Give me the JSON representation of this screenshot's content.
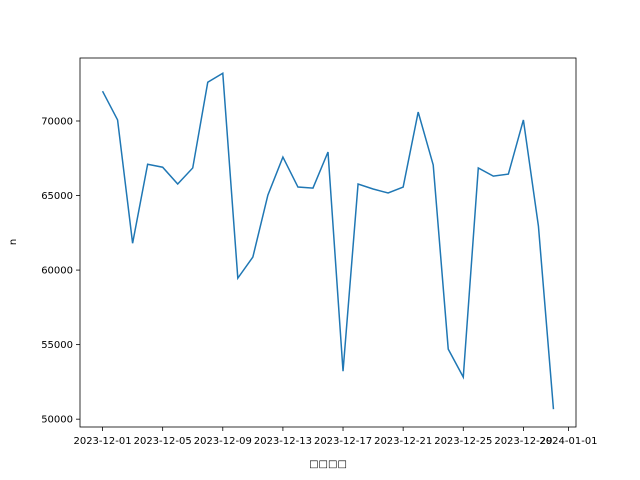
{
  "chart_data": {
    "type": "line",
    "xlabel": "□□□□",
    "ylabel": "n",
    "x": [
      "2023-12-01",
      "2023-12-02",
      "2023-12-03",
      "2023-12-04",
      "2023-12-05",
      "2023-12-06",
      "2023-12-07",
      "2023-12-08",
      "2023-12-09",
      "2023-12-10",
      "2023-12-11",
      "2023-12-12",
      "2023-12-13",
      "2023-12-14",
      "2023-12-15",
      "2023-12-16",
      "2023-12-17",
      "2023-12-18",
      "2023-12-19",
      "2023-12-20",
      "2023-12-21",
      "2023-12-22",
      "2023-12-23",
      "2023-12-24",
      "2023-12-25",
      "2023-12-26",
      "2023-12-27",
      "2023-12-28",
      "2023-12-29",
      "2023-12-30",
      "2023-12-31"
    ],
    "series": [
      {
        "color": "#1f77b4",
        "values": [
          72000,
          70070,
          61800,
          67100,
          66900,
          65770,
          66850,
          72600,
          73200,
          59460,
          60870,
          65030,
          67580,
          65570,
          65500,
          67920,
          53220,
          65770,
          65440,
          65170,
          65570,
          70600,
          67050,
          54700,
          52820,
          66850,
          66300,
          66440,
          70070,
          62950,
          50670
        ]
      }
    ],
    "xlim": [
      "2023-11-29T12:00:00Z",
      "2024-01-01T12:00:00Z"
    ],
    "xticks": [
      "2023-12-01",
      "2023-12-05",
      "2023-12-09",
      "2023-12-13",
      "2023-12-17",
      "2023-12-21",
      "2023-12-25",
      "2023-12-29",
      "2024-01-01"
    ],
    "ylim": [
      49475,
      74225
    ],
    "yticks": [
      50000,
      55000,
      60000,
      65000,
      70000
    ]
  }
}
